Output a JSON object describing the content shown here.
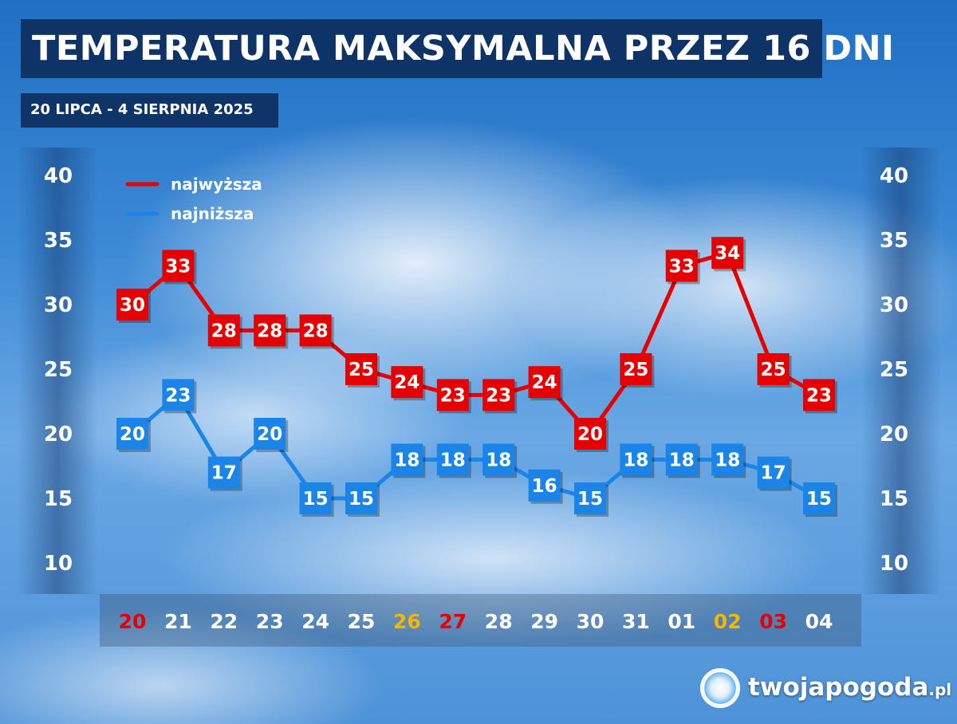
{
  "title": "TEMPERATURA MAKSYMALNA PRZEZ 16 DNI",
  "subtitle": "20 LIPCA - 4 SIERPNIA 2025",
  "logo": {
    "name": "twojapogoda",
    "tld": ".pl"
  },
  "colors": {
    "high": "#e60000",
    "low": "#1a84e8",
    "weekend_sat": "#f7b500",
    "weekend_sun": "#e60000",
    "day_default": "#ffffff"
  },
  "chart_data": {
    "type": "line",
    "ylim": [
      10,
      40
    ],
    "y_ticks": [
      "40",
      "35",
      "30",
      "25",
      "20",
      "15",
      "10"
    ],
    "categories": [
      "20",
      "21",
      "22",
      "23",
      "24",
      "25",
      "26",
      "27",
      "28",
      "29",
      "30",
      "31",
      "01",
      "02",
      "03",
      "04"
    ],
    "category_colors": [
      "sun",
      "default",
      "default",
      "default",
      "default",
      "default",
      "sat",
      "sun",
      "default",
      "default",
      "default",
      "default",
      "default",
      "sat",
      "sun",
      "default"
    ],
    "series": [
      {
        "name": "najwyższa",
        "color": "high",
        "values": [
          30,
          33,
          28,
          28,
          28,
          25,
          24,
          23,
          23,
          24,
          20,
          25,
          33,
          34,
          25,
          23
        ]
      },
      {
        "name": "najniższa",
        "color": "low",
        "values": [
          20,
          23,
          17,
          20,
          15,
          15,
          18,
          18,
          18,
          16,
          15,
          18,
          18,
          18,
          17,
          15
        ]
      }
    ],
    "legend_position": "top-left"
  }
}
